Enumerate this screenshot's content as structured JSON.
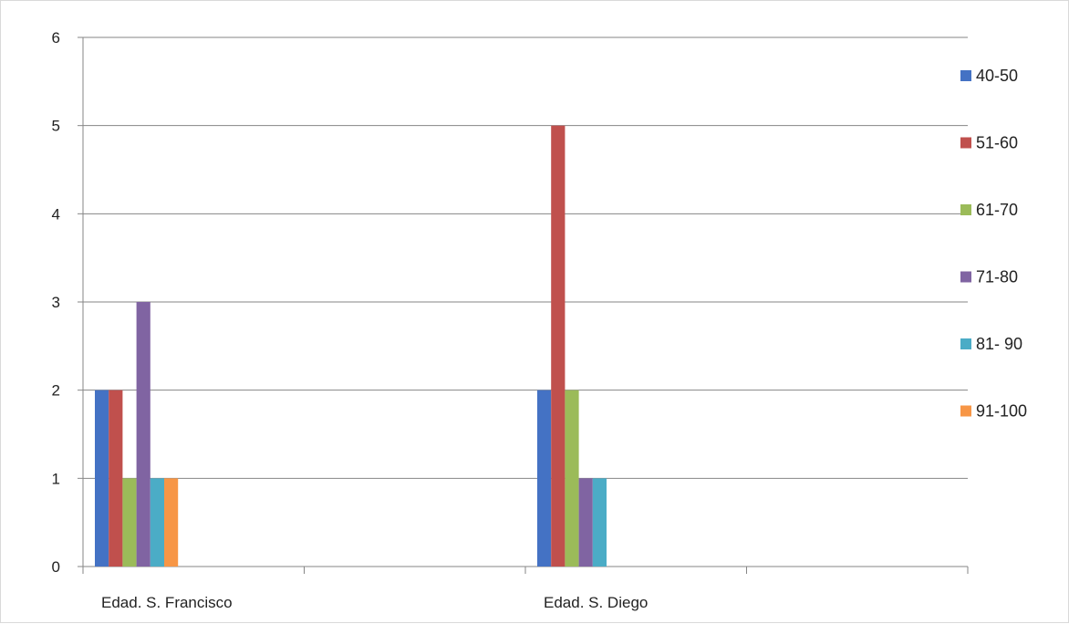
{
  "chart_data": {
    "type": "bar",
    "title": "",
    "xlabel": "",
    "ylabel": "",
    "categories": [
      "Edad. S. Francisco",
      "",
      "Edad. S. Diego",
      ""
    ],
    "ylim": [
      0,
      6
    ],
    "yticks": [
      0,
      1,
      2,
      3,
      4,
      5,
      6
    ],
    "grid": true,
    "legend": "right",
    "series": [
      {
        "name": "40-50",
        "color": "#4472c4",
        "values": [
          2,
          0,
          2,
          0
        ]
      },
      {
        "name": "51-60",
        "color": "#c0504d",
        "values": [
          2,
          0,
          5,
          0
        ]
      },
      {
        "name": "61-70",
        "color": "#9bbb59",
        "values": [
          1,
          0,
          2,
          0
        ]
      },
      {
        "name": "71-80",
        "color": "#8064a2",
        "values": [
          3,
          0,
          1,
          0
        ]
      },
      {
        "name": "81- 90",
        "color": "#4bacc6",
        "values": [
          1,
          0,
          1,
          0
        ]
      },
      {
        "name": "91-100",
        "color": "#f79646",
        "values": [
          1,
          0,
          0,
          0
        ]
      }
    ]
  }
}
